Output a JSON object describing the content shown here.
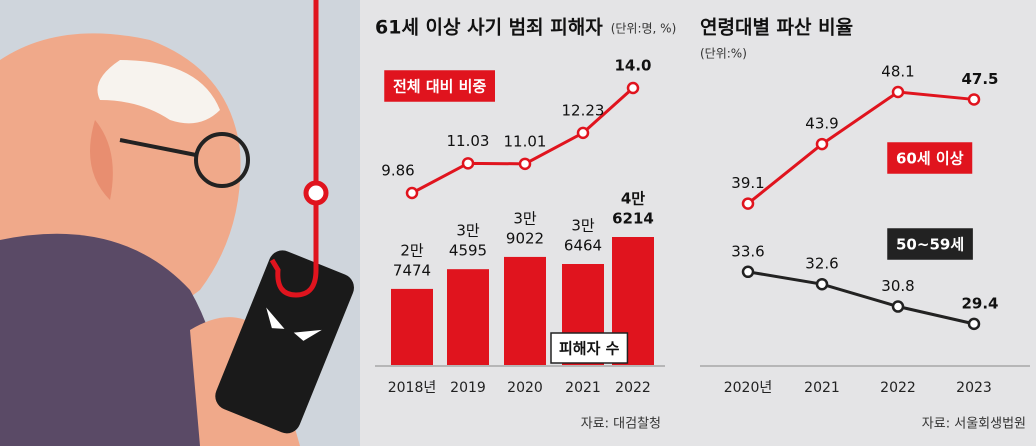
{
  "chart_data": [
    {
      "type": "combo",
      "title": "61세 이상 사기 범죄 피해자",
      "subtitle": "(단위:명, %)",
      "categories": [
        "2018년",
        "2019",
        "2020",
        "2021",
        "2022"
      ],
      "series": [
        {
          "name": "피해자 수",
          "type": "bar",
          "color": "#e0141e",
          "values": [
            27474,
            34595,
            39022,
            36464,
            46214
          ],
          "value_labels": [
            [
              "2만",
              "7474"
            ],
            [
              "3만",
              "4595"
            ],
            [
              "3만",
              "9022"
            ],
            [
              "3만",
              "6464"
            ],
            [
              "4만",
              "6214"
            ]
          ]
        },
        {
          "name": "전체 대비 비중",
          "type": "line",
          "color": "#e0141e",
          "values": [
            9.86,
            11.03,
            11.01,
            12.23,
            14.0
          ],
          "value_labels": [
            "9.86",
            "11.03",
            "11.01",
            "12.23",
            "14.0"
          ]
        }
      ],
      "source": "자료: 대검찰청"
    },
    {
      "type": "line",
      "title": "연령대별 파산 비율",
      "subtitle": "(단위:%)",
      "categories": [
        "2020년",
        "2021",
        "2022",
        "2023"
      ],
      "series": [
        {
          "name": "60세 이상",
          "color": "#e0141e",
          "values": [
            39.1,
            43.9,
            48.1,
            47.5
          ]
        },
        {
          "name": "50~59세",
          "color": "#222222",
          "values": [
            33.6,
            32.6,
            30.8,
            29.4
          ]
        }
      ],
      "source": "자료: 서울회생법원"
    }
  ]
}
